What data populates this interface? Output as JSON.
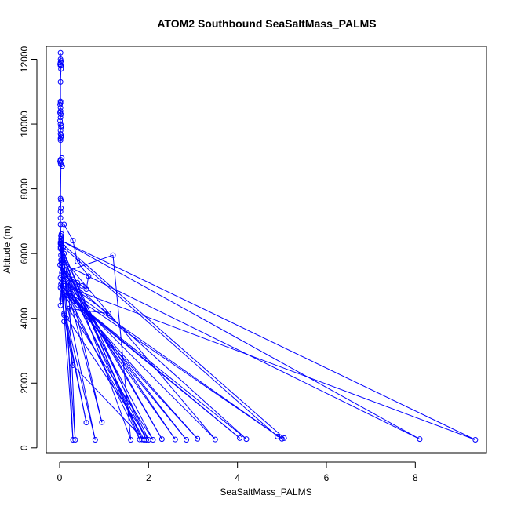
{
  "chart_data": {
    "type": "line",
    "title": "ATOM2 Southbound SeaSaltMass_PALMS",
    "xlabel": "SeaSaltMass_PALMS",
    "ylabel": "Altitude (m)",
    "xlim": [
      -0.3,
      9.6
    ],
    "ylim": [
      -150,
      12400
    ],
    "x_ticks": [
      0,
      2,
      4,
      6,
      8
    ],
    "y_ticks": [
      0,
      2000,
      4000,
      6000,
      8000,
      10000,
      12000
    ],
    "grid": false,
    "legend": "none",
    "series_color": "#0000FF",
    "series": [
      {
        "x": [
          0.02,
          0.02,
          0.03,
          0.01,
          0.02,
          0.03,
          0.02,
          0.02,
          0.01,
          0.02,
          0.02,
          0.03,
          0.02,
          0.01,
          0.02,
          0.03,
          0.02,
          0.02,
          0.03,
          0.02,
          0.02,
          0.01,
          0.02,
          0.03,
          0.02,
          0.03,
          0.02,
          0.02,
          0.03,
          0.04,
          0.03,
          0.04,
          0.05,
          0.03,
          0.04,
          0.05,
          0.06,
          0.1,
          0.2,
          0.3,
          0.4,
          0.5,
          0.6,
          0.65,
          0.4,
          0.3,
          0.1,
          0.02,
          0.05,
          1.2,
          1.6,
          0.02,
          0.1,
          2.0,
          0.05,
          0.08,
          4.9,
          5.05,
          0.02,
          0.05,
          8.1,
          0.04,
          9.35,
          0.1,
          5.0,
          0.2,
          3.5,
          0.1,
          1.85,
          0.2,
          0.35,
          0.03,
          0.05,
          0.6,
          0.1,
          0.3,
          1.9,
          0.05,
          0.1,
          0.15,
          0.8,
          0.05,
          1.1,
          0.2,
          2.1,
          0.05,
          2.3,
          0.15,
          0.95,
          0.1,
          2.6,
          0.2,
          2.85,
          0.05,
          3.1,
          0.15,
          4.05,
          0.1,
          4.2,
          0.05,
          1.95,
          0.1,
          0.3,
          0.05,
          1.8,
          0.02
        ],
        "y": [
          12200,
          12000,
          11950,
          11850,
          11800,
          11700,
          11300,
          10700,
          10600,
          10500,
          10400,
          10300,
          10200,
          10100,
          10000,
          9900,
          9800,
          9700,
          9600,
          9500,
          8900,
          8850,
          8800,
          8750,
          7700,
          7400,
          7100,
          6900,
          6550,
          6500,
          6450,
          6300,
          6100,
          5800,
          5700,
          5600,
          5450,
          5400,
          5300,
          5200,
          5100,
          5000,
          4900,
          5300,
          5750,
          6400,
          6900,
          4400,
          5400,
          5950,
          250,
          6200,
          4150,
          250,
          5800,
          6200,
          350,
          300,
          6350,
          5700,
          270,
          6400,
          250,
          5000,
          280,
          4800,
          260,
          5800,
          260,
          5100,
          250,
          6300,
          4600,
          780,
          4100,
          2550,
          250,
          4900,
          3900,
          4000,
          250,
          5200,
          4150,
          4300,
          250,
          5600,
          270,
          5500,
          790,
          5300,
          260,
          4900,
          250,
          5000,
          280,
          4700,
          300,
          4800,
          270,
          5400,
          250,
          6000,
          250,
          5100,
          260,
          6300
        ]
      }
    ],
    "extra_points": {
      "x": [
        0.02,
        0.03,
        0.02,
        0.01,
        0.04,
        0.03,
        0.02,
        0.05,
        0.06,
        0.03,
        0.02,
        0.04,
        0.02,
        0.03,
        0.01,
        0.02,
        0.03,
        0.02
      ],
      "y": [
        11900,
        11800,
        10650,
        10350,
        9950,
        9650,
        9550,
        8950,
        8700,
        7650,
        7300,
        6600,
        6150,
        5950,
        5650,
        5250,
        5050,
        4950
      ]
    }
  }
}
